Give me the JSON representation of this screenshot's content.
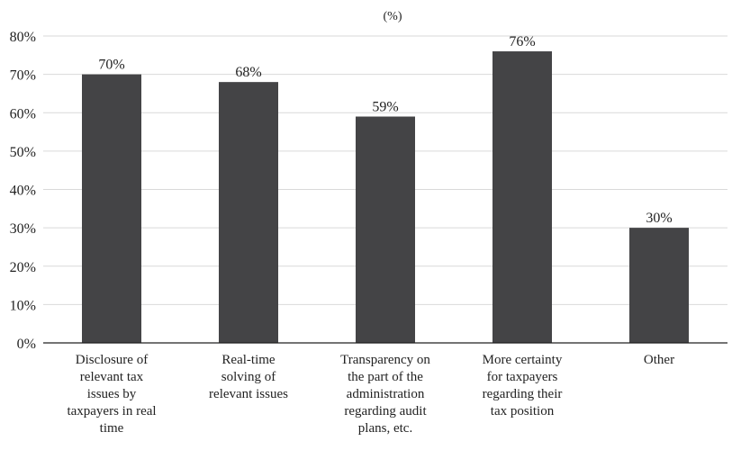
{
  "colors": {
    "bar": "#444446",
    "grid": "#d9d9d9",
    "axis": "#222222"
  },
  "chart_data": {
    "type": "bar",
    "title": "(%)",
    "categories": [
      [
        "Disclosure of",
        "relevant tax",
        "issues by",
        "taxpayers in real",
        "time"
      ],
      [
        "Real-time",
        "solving of",
        "relevant issues"
      ],
      [
        "Transparency on",
        "the part of the",
        "administration",
        "regarding audit",
        "plans, etc."
      ],
      [
        "More certainty",
        "for taxpayers",
        "regarding their",
        "tax position"
      ],
      [
        "Other"
      ]
    ],
    "values": [
      70,
      68,
      59,
      76,
      30
    ],
    "data_labels": [
      "70%",
      "68%",
      "59%",
      "76%",
      "30%"
    ],
    "ylim": [
      0,
      80
    ],
    "yticks": [
      0,
      10,
      20,
      30,
      40,
      50,
      60,
      70,
      80
    ],
    "ytick_labels": [
      "0%",
      "10%",
      "20%",
      "30%",
      "40%",
      "50%",
      "60%",
      "70%",
      "80%"
    ],
    "grid": true,
    "legend": "none"
  }
}
